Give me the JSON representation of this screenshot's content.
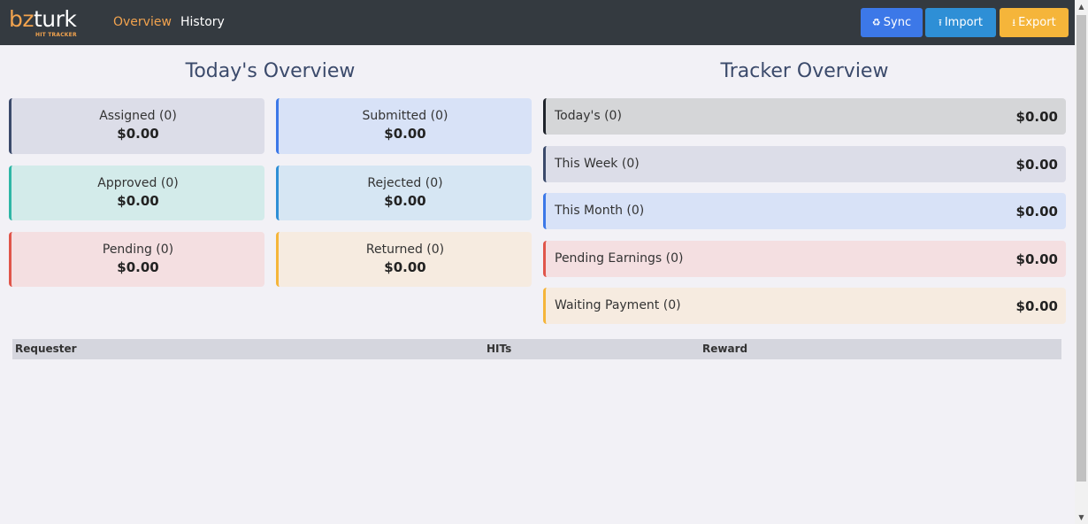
{
  "brand": {
    "logo_prefix": "bz",
    "logo_suffix": "turk",
    "tagline": "HIT TRACKER"
  },
  "nav": {
    "overview": "Overview",
    "history": "History"
  },
  "toolbar": {
    "sync": "Sync",
    "import": "Import",
    "export": "Export"
  },
  "today": {
    "title": "Today's Overview",
    "cards": {
      "assigned": {
        "label": "Assigned (0)",
        "value": "$0.00"
      },
      "submitted": {
        "label": "Submitted (0)",
        "value": "$0.00"
      },
      "approved": {
        "label": "Approved (0)",
        "value": "$0.00"
      },
      "rejected": {
        "label": "Rejected (0)",
        "value": "$0.00"
      },
      "pending": {
        "label": "Pending (0)",
        "value": "$0.00"
      },
      "returned": {
        "label": "Returned (0)",
        "value": "$0.00"
      }
    }
  },
  "tracker": {
    "title": "Tracker Overview",
    "rows": {
      "today": {
        "label": "Today's (0)",
        "value": "$0.00"
      },
      "week": {
        "label": "This Week (0)",
        "value": "$0.00"
      },
      "month": {
        "label": "This Month (0)",
        "value": "$0.00"
      },
      "pending": {
        "label": "Pending Earnings (0)",
        "value": "$0.00"
      },
      "waiting": {
        "label": "Waiting Payment (0)",
        "value": "$0.00"
      }
    }
  },
  "table": {
    "columns": [
      "Requester",
      "HITs",
      "Reward"
    ],
    "rows": []
  },
  "colors": {
    "navbar": "#343a40",
    "accent_orange": "#f2a34e",
    "sync_blue": "#3c78e8",
    "import_blue": "#2e8fd6",
    "export_yellow": "#f5b53a",
    "heading": "#3b4a6b"
  },
  "icons": {
    "sync": "recycle-icon",
    "import": "upload-icon",
    "export": "download-icon"
  }
}
